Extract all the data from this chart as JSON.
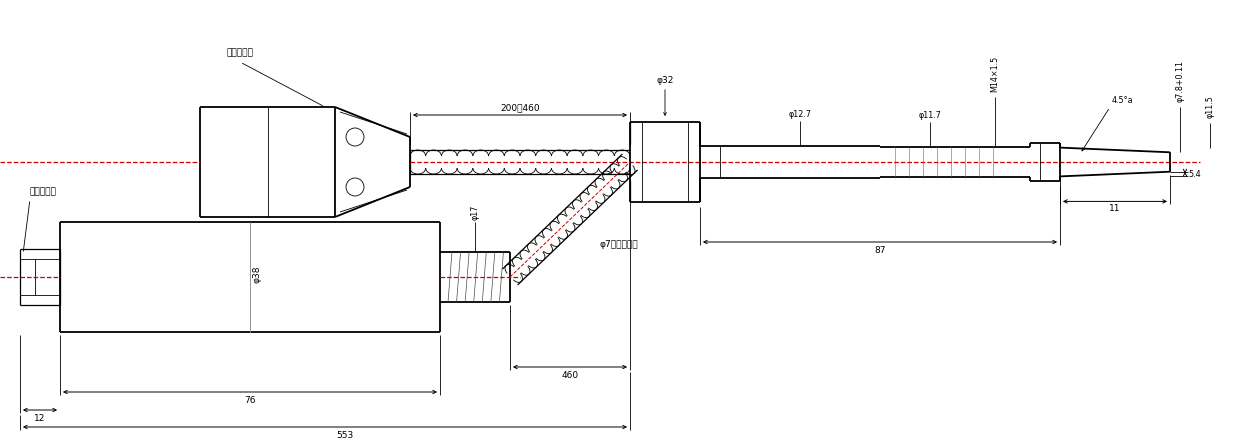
{
  "bg_color": "#ffffff",
  "line_color": "#000000",
  "center_line_color": "#cc0000",
  "fig_width": 12.5,
  "fig_height": 4.47,
  "labels": {
    "wuxin": "五芯接插件",
    "erxin": "二芯接插件",
    "ruxin_tube": "φ7不锈鍶软管",
    "d38": "φ38",
    "d17": "φ17",
    "d32": "φ32",
    "d12_7": "φ12.7",
    "d11_7": "φ11.7",
    "m14x15": "M14×1.5",
    "d45deg": "4.5°a",
    "d78": "φ7.8+0.11",
    "d115": "φ11.5",
    "dim_200_460": "200～460",
    "dim_460": "460",
    "dim_76": "76",
    "dim_12": "12",
    "dim_553": "553",
    "dim_87": "87",
    "dim_5_4": "5.4",
    "dim_11": "11"
  }
}
